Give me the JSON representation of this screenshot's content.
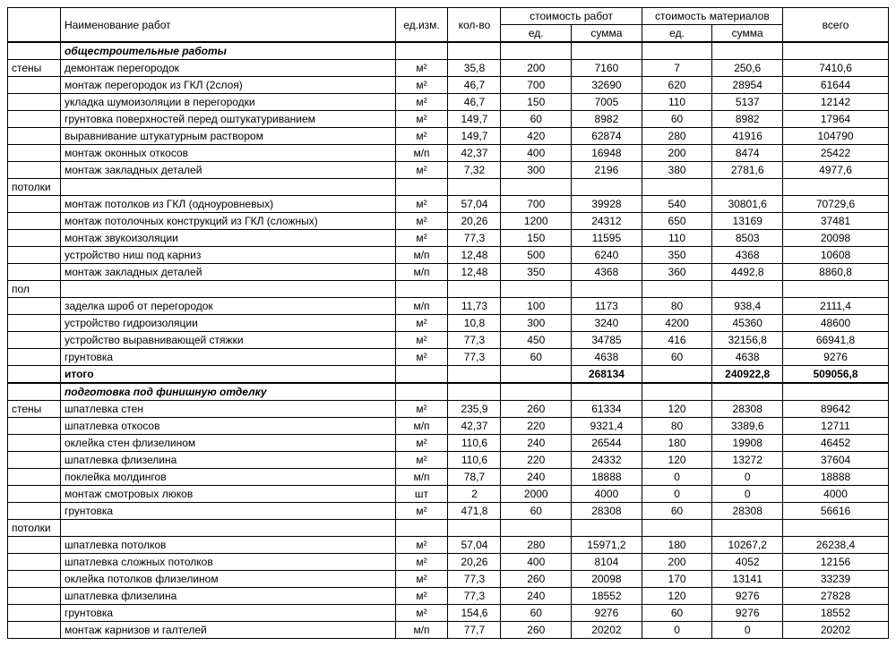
{
  "table": {
    "headers": {
      "name": "Наименование работ",
      "unit": "ед.изм.",
      "qty": "кол-во",
      "work_cost": "стоимость работ",
      "mat_cost": "стоимость материалов",
      "total": "всего",
      "sub_unit": "ед.",
      "sub_sum": "сумма"
    },
    "rows": [
      {
        "type": "section",
        "name": "общестроительные работы",
        "border_top": true
      },
      {
        "type": "data",
        "cat": "стены",
        "name": "демонтаж перегородок",
        "unit": "м²",
        "qty": "35,8",
        "wu": "200",
        "ws": "7160",
        "mu": "7",
        "ms": "250,6",
        "total": "7410,6"
      },
      {
        "type": "data",
        "cat": "",
        "name": "монтаж перегородок из ГКЛ (2слоя)",
        "unit": "м²",
        "qty": "46,7",
        "wu": "700",
        "ws": "32690",
        "mu": "620",
        "ms": "28954",
        "total": "61644"
      },
      {
        "type": "data",
        "cat": "",
        "name": "укладка шумоизоляции в перегородки",
        "unit": "м²",
        "qty": "46,7",
        "wu": "150",
        "ws": "7005",
        "mu": "110",
        "ms": "5137",
        "total": "12142"
      },
      {
        "type": "data",
        "cat": "",
        "name": "грунтовка поверхностей перед оштукатуриванием",
        "unit": "м²",
        "qty": "149,7",
        "wu": "60",
        "ws": "8982",
        "mu": "60",
        "ms": "8982",
        "total": "17964"
      },
      {
        "type": "data",
        "cat": "",
        "name": "выравнивание штукатурным раствором",
        "unit": "м²",
        "qty": "149,7",
        "wu": "420",
        "ws": "62874",
        "mu": "280",
        "ms": "41916",
        "total": "104790"
      },
      {
        "type": "data",
        "cat": "",
        "name": "монтаж оконных откосов",
        "unit": "м/п",
        "qty": "42,37",
        "wu": "400",
        "ws": "16948",
        "mu": "200",
        "ms": "8474",
        "total": "25422"
      },
      {
        "type": "data",
        "cat": "",
        "name": "монтаж закладных деталей",
        "unit": "м²",
        "qty": "7,32",
        "wu": "300",
        "ws": "2196",
        "mu": "380",
        "ms": "2781,6",
        "total": "4977,6"
      },
      {
        "type": "empty",
        "cat": "потолки"
      },
      {
        "type": "data",
        "cat": "",
        "name": "монтаж потолков из ГКЛ (одноуровневых)",
        "unit": "м²",
        "qty": "57,04",
        "wu": "700",
        "ws": "39928",
        "mu": "540",
        "ms": "30801,6",
        "total": "70729,6"
      },
      {
        "type": "data",
        "cat": "",
        "name": "монтаж потолочных конструкций из ГКЛ (сложных)",
        "unit": "м²",
        "qty": "20,26",
        "wu": "1200",
        "ws": "24312",
        "mu": "650",
        "ms": "13169",
        "total": "37481"
      },
      {
        "type": "data",
        "cat": "",
        "name": "монтаж звукоизоляции",
        "unit": "м²",
        "qty": "77,3",
        "wu": "150",
        "ws": "11595",
        "mu": "110",
        "ms": "8503",
        "total": "20098"
      },
      {
        "type": "data",
        "cat": "",
        "name": "устройство ниш под карниз",
        "unit": "м/п",
        "qty": "12,48",
        "wu": "500",
        "ws": "6240",
        "mu": "350",
        "ms": "4368",
        "total": "10608"
      },
      {
        "type": "data",
        "cat": "",
        "name": "монтаж закладных деталей",
        "unit": "м/п",
        "qty": "12,48",
        "wu": "350",
        "ws": "4368",
        "mu": "360",
        "ms": "4492,8",
        "total": "8860,8"
      },
      {
        "type": "empty",
        "cat": "пол"
      },
      {
        "type": "data",
        "cat": "",
        "name": "заделка шроб от перегородок",
        "unit": "м/п",
        "qty": "11,73",
        "wu": "100",
        "ws": "1173",
        "mu": "80",
        "ms": "938,4",
        "total": "2111,4"
      },
      {
        "type": "data",
        "cat": "",
        "name": "устройство гидроизоляции",
        "unit": "м²",
        "qty": "10,8",
        "wu": "300",
        "ws": "3240",
        "mu": "4200",
        "ms": "45360",
        "total": "48600"
      },
      {
        "type": "data",
        "cat": "",
        "name": "устройство выравнивающей стяжки",
        "unit": "м²",
        "qty": "77,3",
        "wu": "450",
        "ws": "34785",
        "mu": "416",
        "ms": "32156,8",
        "total": "66941,8"
      },
      {
        "type": "data",
        "cat": "",
        "name": "грунтовка",
        "unit": "м²",
        "qty": "77,3",
        "wu": "60",
        "ws": "4638",
        "mu": "60",
        "ms": "4638",
        "total": "9276"
      },
      {
        "type": "total",
        "name": "итого",
        "ws": "268134",
        "ms": "240922,8",
        "total": "509056,8"
      },
      {
        "type": "section",
        "name": "подготовка под финишную отделку",
        "border_top": true
      },
      {
        "type": "data",
        "cat": "стены",
        "name": "шпатлевка стен",
        "unit": "м²",
        "qty": "235,9",
        "wu": "260",
        "ws": "61334",
        "mu": "120",
        "ms": "28308",
        "total": "89642"
      },
      {
        "type": "data",
        "cat": "",
        "name": "шпатлевка откосов",
        "unit": "м/п",
        "qty": "42,37",
        "wu": "220",
        "ws": "9321,4",
        "mu": "80",
        "ms": "3389,6",
        "total": "12711"
      },
      {
        "type": "data",
        "cat": "",
        "name": "оклейка стен флизелином",
        "unit": "м²",
        "qty": "110,6",
        "wu": "240",
        "ws": "26544",
        "mu": "180",
        "ms": "19908",
        "total": "46452"
      },
      {
        "type": "data",
        "cat": "",
        "name": "шпатлевка флизелина",
        "unit": "м²",
        "qty": "110,6",
        "wu": "220",
        "ws": "24332",
        "mu": "120",
        "ms": "13272",
        "total": "37604"
      },
      {
        "type": "data",
        "cat": "",
        "name": "поклейка молдингов",
        "unit": "м/п",
        "qty": "78,7",
        "wu": "240",
        "ws": "18888",
        "mu": "0",
        "ms": "0",
        "total": "18888"
      },
      {
        "type": "data",
        "cat": "",
        "name": "монтаж смотровых люков",
        "unit": "шт",
        "qty": "2",
        "wu": "2000",
        "ws": "4000",
        "mu": "0",
        "ms": "0",
        "total": "4000"
      },
      {
        "type": "data",
        "cat": "",
        "name": "грунтовка",
        "unit": "м²",
        "qty": "471,8",
        "wu": "60",
        "ws": "28308",
        "mu": "60",
        "ms": "28308",
        "total": "56616"
      },
      {
        "type": "empty",
        "cat": "потолки"
      },
      {
        "type": "data",
        "cat": "",
        "name": "шпатлевка потолков",
        "unit": "м²",
        "qty": "57,04",
        "wu": "280",
        "ws": "15971,2",
        "mu": "180",
        "ms": "10267,2",
        "total": "26238,4"
      },
      {
        "type": "data",
        "cat": "",
        "name": "шпатлевка сложных потолков",
        "unit": "м²",
        "qty": "20,26",
        "wu": "400",
        "ws": "8104",
        "mu": "200",
        "ms": "4052",
        "total": "12156"
      },
      {
        "type": "data",
        "cat": "",
        "name": "оклейка потолков флизелином",
        "unit": "м²",
        "qty": "77,3",
        "wu": "260",
        "ws": "20098",
        "mu": "170",
        "ms": "13141",
        "total": "33239"
      },
      {
        "type": "data",
        "cat": "",
        "name": "шпатлевка флизелина",
        "unit": "м²",
        "qty": "77,3",
        "wu": "240",
        "ws": "18552",
        "mu": "120",
        "ms": "9276",
        "total": "27828"
      },
      {
        "type": "data",
        "cat": "",
        "name": "грунтовка",
        "unit": "м²",
        "qty": "154,6",
        "wu": "60",
        "ws": "9276",
        "mu": "60",
        "ms": "9276",
        "total": "18552"
      },
      {
        "type": "data",
        "cat": "",
        "name": "монтаж карнизов и галтелей",
        "unit": "м/п",
        "qty": "77,7",
        "wu": "260",
        "ws": "20202",
        "mu": "0",
        "ms": "0",
        "total": "20202"
      }
    ]
  }
}
